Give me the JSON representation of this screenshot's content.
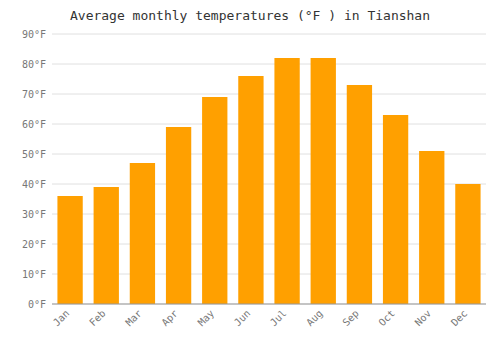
{
  "chart_data": {
    "type": "bar",
    "title": "Average monthly temperatures (°F ) in Tianshan",
    "categories": [
      "Jan",
      "Feb",
      "Mar",
      "Apr",
      "May",
      "Jun",
      "Jul",
      "Aug",
      "Sep",
      "Oct",
      "Nov",
      "Dec"
    ],
    "values": [
      36,
      39,
      47,
      59,
      69,
      76,
      82,
      82,
      73,
      63,
      51,
      40
    ],
    "color": "#FFA000",
    "ylim": [
      0,
      90
    ],
    "yticks": [
      {
        "value": 0,
        "label": "0°F"
      },
      {
        "value": 10,
        "label": "10°F"
      },
      {
        "value": 20,
        "label": "20°F"
      },
      {
        "value": 30,
        "label": "30°F"
      },
      {
        "value": 40,
        "label": "40°F"
      },
      {
        "value": 50,
        "label": "50°F"
      },
      {
        "value": 60,
        "label": "60°F"
      },
      {
        "value": 70,
        "label": "70°F"
      },
      {
        "value": 80,
        "label": "80°F"
      },
      {
        "value": 90,
        "label": "90°F"
      }
    ],
    "grid": true
  }
}
